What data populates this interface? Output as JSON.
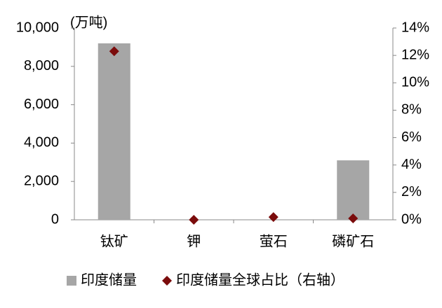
{
  "chart_data": {
    "type": "bar-dot",
    "y_label": "(万吨)",
    "categories": [
      "钛矿",
      "钾",
      "萤石",
      "磷矿石"
    ],
    "series": [
      {
        "name": "印度储量",
        "color": "#a6a6a6",
        "kind": "bar",
        "values": [
          9200,
          0,
          0,
          3100
        ]
      },
      {
        "name": "印度储量全球占比（右轴）",
        "color": "#7b0c0c",
        "kind": "diamond",
        "axis": "y2",
        "values": [
          12.3,
          0,
          0.2,
          0.1
        ]
      }
    ],
    "ylim": [
      0,
      10000
    ],
    "yticks": [
      0,
      {
        "value": 2000,
        "label": "2,000"
      },
      {
        "value": 4000,
        "label": "4,000"
      },
      {
        "value": 6000,
        "label": "6,000"
      },
      {
        "value": 8000,
        "label": "8,000"
      },
      {
        "value": 10000,
        "label": "10,000"
      }
    ],
    "y2lim": [
      0,
      14
    ],
    "y2ticks": [
      {
        "value": 0,
        "label": "0%"
      },
      {
        "value": 2,
        "label": "2%"
      },
      {
        "value": 4,
        "label": "4%"
      },
      {
        "value": 6,
        "label": "6%"
      },
      {
        "value": 8,
        "label": "8%"
      },
      {
        "value": 10,
        "label": "10%"
      },
      {
        "value": 12,
        "label": "12%"
      },
      {
        "value": 14,
        "label": "14%"
      }
    ]
  }
}
